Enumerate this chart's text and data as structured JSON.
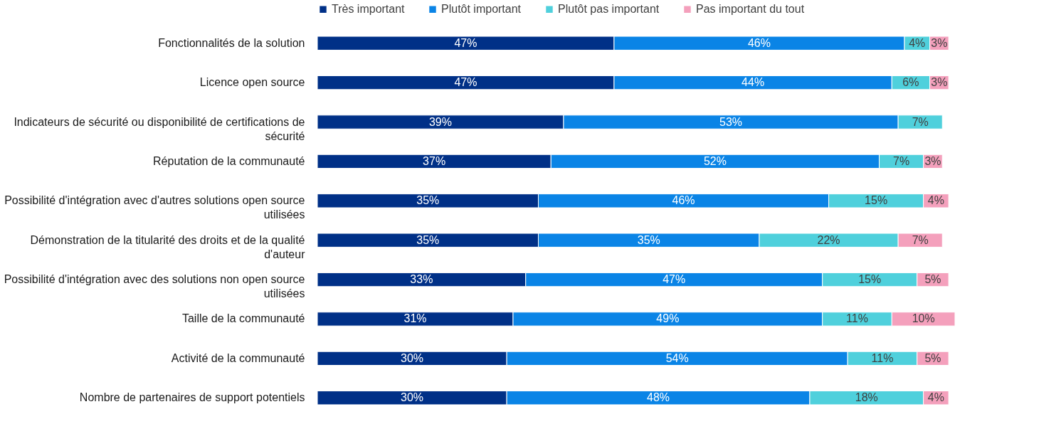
{
  "chart_data": {
    "type": "bar",
    "orientation": "horizontal",
    "stacked": true,
    "legend": "top",
    "grid": false,
    "categories": [
      "Fonctionnalités de la solution",
      "Licence open source",
      "Indicateurs de sécurité ou disponibilité de certifications de sécurité",
      "Réputation de la communauté",
      "Possibilité d'intégration avec d'autres solutions open source utilisées",
      "Démonstration de la titularité des droits et de la qualité d'auteur",
      "Possibilité d'intégration avec des solutions non open source utilisées",
      "Taille de la communauté",
      "Activité de la communauté",
      "Nombre de partenaires de support potentiels"
    ],
    "series": [
      {
        "name": "Très important",
        "color": "#003087",
        "values": [
          47,
          47,
          39,
          37,
          35,
          35,
          33,
          31,
          30,
          30
        ],
        "value_labels": [
          "47%",
          "47%",
          "39%",
          "37%",
          "35%",
          "35%",
          "33%",
          "31%",
          "30%",
          "30%"
        ]
      },
      {
        "name": "Plutôt important",
        "color": "#0a84e6",
        "values": [
          46,
          44,
          53,
          52,
          46,
          35,
          47,
          49,
          54,
          48
        ],
        "value_labels": [
          "46%",
          "44%",
          "53%",
          "52%",
          "46%",
          "35%",
          "47%",
          "49%",
          "54%",
          "48%"
        ]
      },
      {
        "name": "Plutôt pas important",
        "color": "#4fd0dc",
        "values": [
          4,
          6,
          7,
          7,
          15,
          22,
          15,
          11,
          11,
          18
        ],
        "value_labels": [
          "4%",
          "6%",
          "7%",
          "7%",
          "15%",
          "22%",
          "15%",
          "11%",
          "11%",
          "18%"
        ]
      },
      {
        "name": "Pas important du tout",
        "color": "#f4a0bc",
        "values": [
          3,
          3,
          null,
          3,
          4,
          7,
          5,
          10,
          5,
          4
        ],
        "value_labels": [
          "3%",
          "3%",
          null,
          "3%",
          "4%",
          "7%",
          "5%",
          "10%",
          "5%",
          "4%"
        ]
      }
    ]
  }
}
